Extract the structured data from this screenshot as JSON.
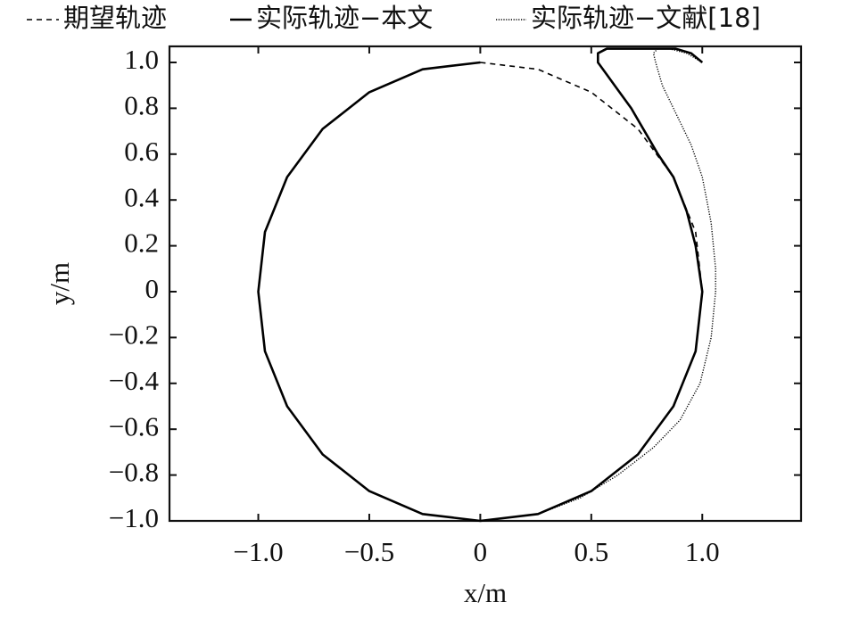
{
  "chart_data": {
    "type": "line",
    "xlabel": "x/m",
    "ylabel": "y/m",
    "xlim": [
      -1.4,
      1.445
    ],
    "ylim": [
      -1,
      1.07
    ],
    "xticks": [
      {
        "value": -1,
        "label": "−1.0"
      },
      {
        "value": -0.5,
        "label": "−0.5"
      },
      0,
      0.5,
      {
        "value": 1,
        "label": "1.0"
      }
    ],
    "yticks": [
      {
        "value": -1,
        "label": "−1.0"
      },
      {
        "value": -0.8,
        "label": "−0.8"
      },
      {
        "value": -0.6,
        "label": "−0.6"
      },
      {
        "value": -0.4,
        "label": "−0.4"
      },
      {
        "value": -0.2,
        "label": "−0.2"
      },
      0,
      0.2,
      0.4,
      0.6,
      0.8,
      {
        "value": 1,
        "label": "1.0"
      }
    ],
    "grid": false,
    "legend": "top",
    "series": [
      {
        "name": "期望轨迹",
        "color": "#000000",
        "style": "dashed",
        "x": [
          0,
          0.26,
          0.5,
          0.71,
          0.87,
          0.97,
          1,
          0.97,
          0.87,
          0.71,
          0.5,
          0.26,
          0,
          -0.26,
          -0.5,
          -0.71,
          -0.87,
          -0.97,
          -1,
          -0.97,
          -0.87,
          -0.71,
          -0.5,
          -0.26,
          0
        ],
        "values": [
          1,
          0.97,
          0.87,
          0.71,
          0.5,
          0.26,
          0,
          -0.26,
          -0.5,
          -0.71,
          -0.87,
          -0.97,
          -1,
          -0.97,
          -0.87,
          -0.71,
          -0.5,
          -0.26,
          0,
          0.26,
          0.5,
          0.71,
          0.87,
          0.97,
          1
        ]
      },
      {
        "name": "实际轨迹−本文",
        "color": "#000000",
        "style": "solid",
        "x": [
          1,
          0.95,
          0.88,
          0.7,
          0.57,
          0.53,
          0.53,
          0.56,
          0.62,
          0.68,
          0.74,
          0.8,
          0.87,
          0.93,
          0.97,
          1,
          0.97,
          0.87,
          0.71,
          0.5,
          0.26,
          0,
          -0.26,
          -0.5,
          -0.71,
          -0.87,
          -0.97,
          -1,
          -0.97,
          -0.87,
          -0.71,
          -0.5,
          -0.26,
          0
        ],
        "values": [
          1,
          1.04,
          1.06,
          1.06,
          1.06,
          1.04,
          1,
          0.96,
          0.88,
          0.8,
          0.7,
          0.6,
          0.5,
          0.35,
          0.2,
          0,
          -0.26,
          -0.5,
          -0.71,
          -0.87,
          -0.97,
          -1,
          -0.97,
          -0.87,
          -0.71,
          -0.5,
          -0.26,
          0,
          0.26,
          0.5,
          0.71,
          0.87,
          0.97,
          1
        ]
      },
      {
        "name": "实际轨迹−文献[18]",
        "color": "#000000",
        "style": "dotted",
        "x": [
          1,
          0.93,
          0.85,
          0.8,
          0.78,
          0.79,
          0.82,
          0.88,
          0.95,
          1,
          1.04,
          1.06,
          1.06,
          1.04,
          0.99,
          0.9,
          0.78,
          0.62,
          0.45,
          0.26,
          0,
          -0.26,
          -0.5,
          -0.71,
          -0.87,
          -0.97,
          -1
        ],
        "values": [
          1,
          1.04,
          1.06,
          1.06,
          1.04,
          1,
          0.9,
          0.78,
          0.64,
          0.5,
          0.3,
          0.1,
          0,
          -0.2,
          -0.4,
          -0.56,
          -0.68,
          -0.8,
          -0.9,
          -0.97,
          -1,
          -0.97,
          -0.87,
          -0.71,
          -0.5,
          -0.26,
          0
        ]
      }
    ]
  }
}
